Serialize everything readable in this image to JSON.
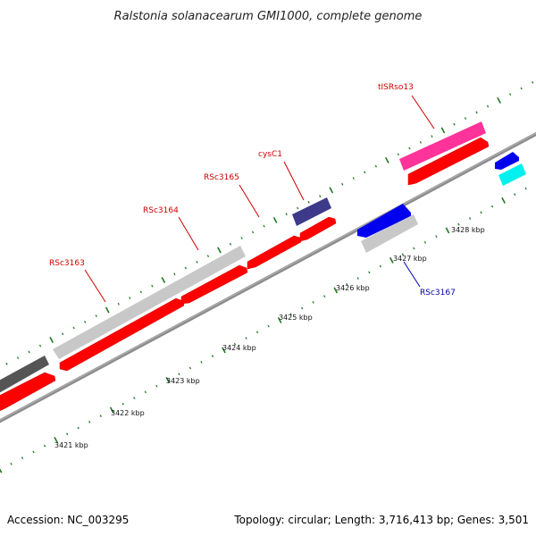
{
  "title": "Ralstonia solanacearum GMI1000, complete genome",
  "footer": {
    "accession": "Accession: NC_003295",
    "summary": "Topology: circular; Length: 3,716,413 bp; Genes: 3,501"
  },
  "colors": {
    "backbone": "#7d7d7d",
    "tick": "#1e7a1e",
    "forward_cds": "#ff0000",
    "gene_gray": "#c8c8c8",
    "gene_dark": "#555555",
    "gene_pink": "#ff3399",
    "gene_navy": "#3d3a8a",
    "gene_blue": "#0000ee",
    "gene_cyan": "#00f0f0",
    "label_red": "#cc0000",
    "label_blue": "#0000aa"
  },
  "scale_labels": [
    "3421 kbp",
    "3422 kbp",
    "3423 kbp",
    "3424 kbp",
    "3425 kbp",
    "3426 kbp",
    "3427 kbp",
    "3428 kbp"
  ],
  "gene_labels": [
    {
      "text": "RSc3163",
      "color": "red"
    },
    {
      "text": "RSc3164",
      "color": "red"
    },
    {
      "text": "RSc3165",
      "color": "red"
    },
    {
      "text": "cysC1",
      "color": "red"
    },
    {
      "text": "tISRso13",
      "color": "red"
    },
    {
      "text": "RSc3167",
      "color": "blue"
    }
  ]
}
